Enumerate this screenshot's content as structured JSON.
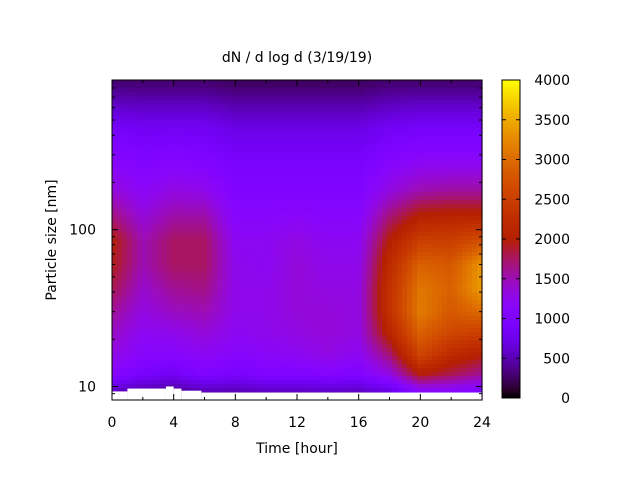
{
  "chart_data": {
    "type": "heatmap",
    "title": "dN / d log d (3/19/19)",
    "xlabel": "Time [hour]",
    "ylabel": "Particle size [nm]",
    "xlim": [
      0,
      24
    ],
    "ylim": [
      8.2,
      900
    ],
    "y_scale": "log",
    "x_ticks": [
      0,
      4,
      8,
      12,
      16,
      20,
      24
    ],
    "y_ticks": [
      10,
      100
    ],
    "colorbar": {
      "range": [
        0,
        4000
      ],
      "ticks": [
        0,
        500,
        1000,
        1500,
        2000,
        2500,
        3000,
        3500,
        4000
      ],
      "palette": "gnuplot-rgbformulae-7-5-15"
    },
    "x": [
      0,
      2,
      4,
      6,
      8,
      10,
      12,
      14,
      16,
      18,
      20,
      22,
      24
    ],
    "y": [
      9,
      12,
      16,
      22,
      30,
      42,
      60,
      85,
      120,
      180,
      280,
      450,
      850
    ],
    "z": [
      [
        500,
        400,
        350,
        450,
        450,
        500,
        500,
        500,
        500,
        600,
        1000,
        1000,
        900
      ],
      [
        1100,
        900,
        800,
        1000,
        900,
        1000,
        1000,
        1050,
        1000,
        1300,
        2000,
        1800,
        1600
      ],
      [
        1300,
        1100,
        1100,
        1200,
        1100,
        1150,
        1200,
        1300,
        1200,
        1700,
        2600,
        2200,
        2000
      ],
      [
        1450,
        1200,
        1250,
        1350,
        1200,
        1250,
        1300,
        1350,
        1300,
        2100,
        2900,
        2600,
        2500
      ],
      [
        1600,
        1300,
        1450,
        1500,
        1250,
        1250,
        1350,
        1350,
        1300,
        2300,
        3150,
        2800,
        3000
      ],
      [
        1800,
        1400,
        1600,
        1650,
        1250,
        1250,
        1350,
        1300,
        1300,
        2300,
        3100,
        2900,
        3400
      ],
      [
        1950,
        1500,
        1750,
        1750,
        1250,
        1200,
        1350,
        1250,
        1250,
        2200,
        2900,
        2800,
        3350
      ],
      [
        2000,
        1500,
        1750,
        1750,
        1200,
        1200,
        1300,
        1200,
        1200,
        2000,
        2500,
        2500,
        2700
      ],
      [
        1700,
        1350,
        1550,
        1550,
        1100,
        1100,
        1150,
        1100,
        1100,
        1700,
        2050,
        2100,
        2100
      ],
      [
        1350,
        1150,
        1300,
        1250,
        1000,
        1000,
        1000,
        1000,
        1000,
        1300,
        1500,
        1550,
        1550
      ],
      [
        1100,
        1000,
        1050,
        1000,
        900,
        900,
        900,
        900,
        900,
        1050,
        1150,
        1150,
        1150
      ],
      [
        850,
        800,
        800,
        800,
        700,
        700,
        700,
        700,
        700,
        800,
        850,
        850,
        850
      ],
      [
        300,
        300,
        300,
        300,
        250,
        250,
        250,
        250,
        250,
        300,
        300,
        300,
        300
      ]
    ]
  }
}
